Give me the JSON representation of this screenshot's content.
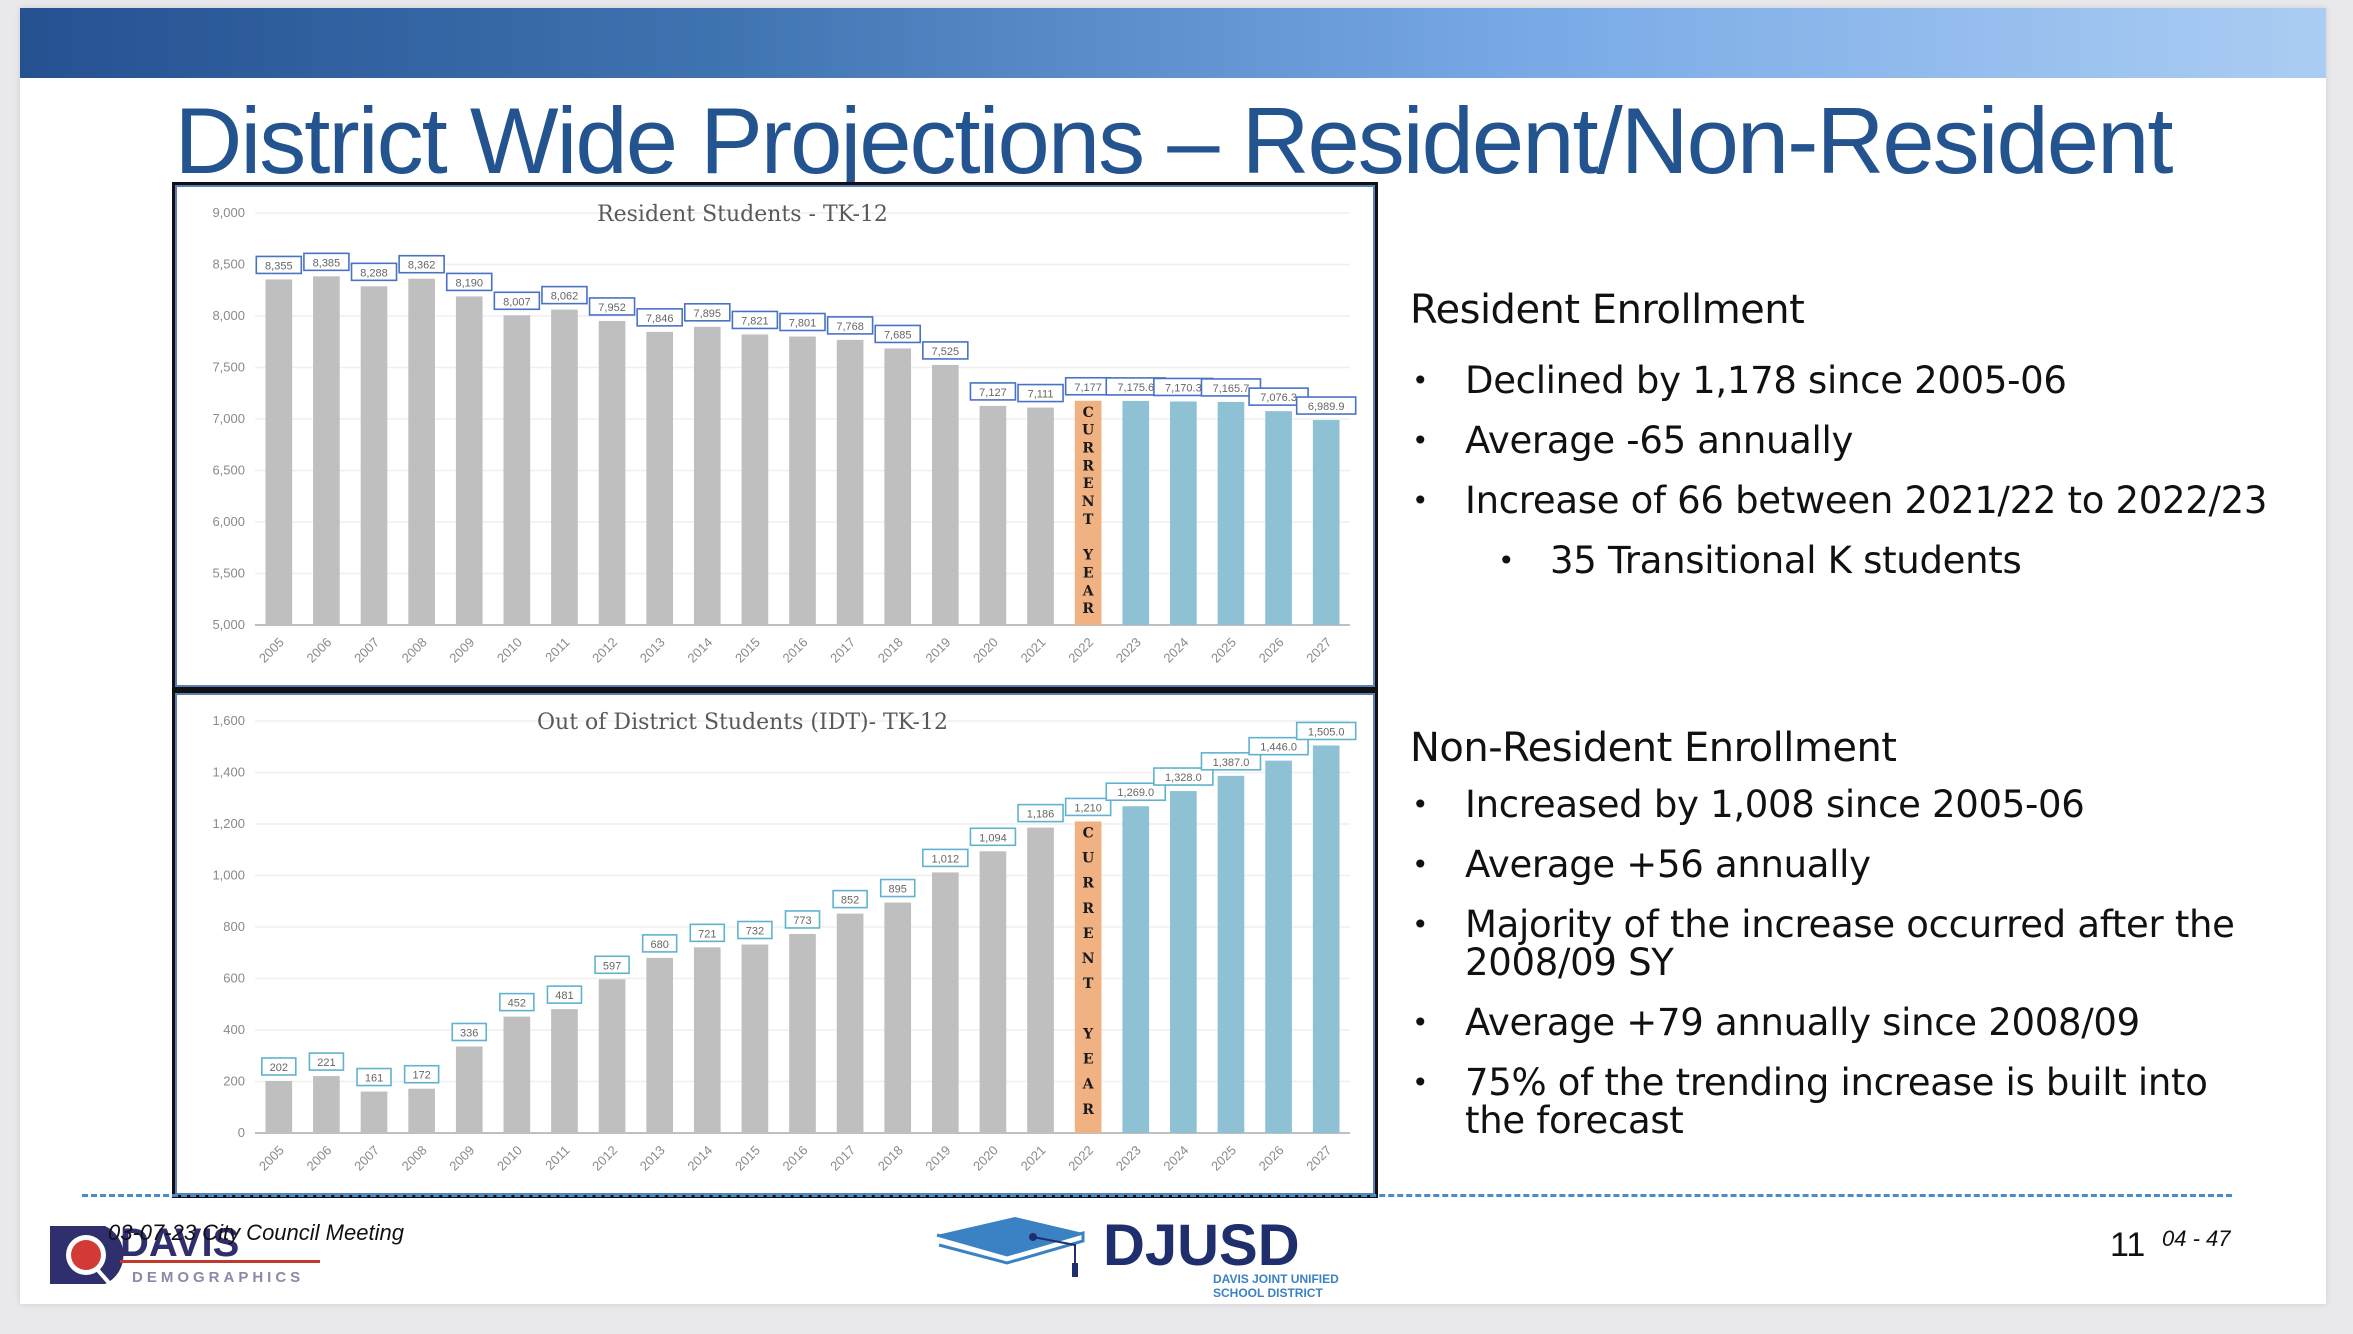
{
  "slide": {
    "title": "District Wide Projections – Resident/Non-Resident",
    "colors": {
      "title": "#23548f",
      "historical_bar": "#bfbfbf",
      "current_year_bar": "#f0b183",
      "projection_bar": "#8fc1d4",
      "label_box_resident": "#4a72c4",
      "label_box_nonresident": "#5fb3cf"
    }
  },
  "resident_panel": {
    "heading": "Resident Enrollment",
    "bullets": [
      "Declined by 1,178 since 2005-06",
      "Average -65 annually",
      "Increase of 66 between 2021/22 to 2022/23"
    ],
    "sub_bullets": [
      "35 Transitional K students"
    ]
  },
  "nonresident_panel": {
    "heading": "Non-Resident Enrollment",
    "bullets": [
      "Increased by 1,008 since 2005-06",
      "Average +56 annually",
      "Majority of the increase occurred after the 2008/09 SY",
      "Average +79 annually since 2008/09",
      "75% of the trending increase is built into the forecast"
    ]
  },
  "footer": {
    "meeting": "03-07-23 City Council Meeting",
    "left_logo_name": "DAVIS",
    "left_logo_sub": "DEMOGRAPHICS",
    "center_logo_name": "DJUSD",
    "center_logo_sub1": "DAVIS JOINT UNIFIED",
    "center_logo_sub2": "SCHOOL DISTRICT",
    "page_number": "11",
    "page_ref": "04 - 47"
  },
  "chart_data": [
    {
      "type": "bar",
      "title": "Resident Students - TK-12",
      "categories": [
        "2005",
        "2006",
        "2007",
        "2008",
        "2009",
        "2010",
        "2011",
        "2012",
        "2013",
        "2014",
        "2015",
        "2016",
        "2017",
        "2018",
        "2019",
        "2020",
        "2021",
        "2022",
        "2023",
        "2024",
        "2025",
        "2026",
        "2027"
      ],
      "values": [
        8355,
        8385,
        8288,
        8362,
        8190,
        8007,
        8062,
        7952,
        7846,
        7895,
        7821,
        7801,
        7768,
        7685,
        7525,
        7127,
        7111,
        7177,
        7175.6,
        7170.3,
        7165.7,
        7076.3,
        6989.9
      ],
      "labels": [
        "8,355",
        "8,385",
        "8,288",
        "8,362",
        "8,190",
        "8,007",
        "8,062",
        "7,952",
        "7,846",
        "7,895",
        "7,821",
        "7,801",
        "7,768",
        "7,685",
        "7,525",
        "7,127",
        "7,111",
        "7,177",
        "7,175.6",
        "7,170.3",
        "7,165.7",
        "7,076.3",
        "6,989.9"
      ],
      "bar_kind": [
        "hist",
        "hist",
        "hist",
        "hist",
        "hist",
        "hist",
        "hist",
        "hist",
        "hist",
        "hist",
        "hist",
        "hist",
        "hist",
        "hist",
        "hist",
        "hist",
        "hist",
        "current",
        "proj",
        "proj",
        "proj",
        "proj",
        "proj"
      ],
      "current_year_text": "CURRENT YEAR",
      "ylim": [
        5000,
        9000
      ],
      "yticks": [
        5000,
        5500,
        6000,
        6500,
        7000,
        7500,
        8000,
        8500,
        9000
      ],
      "ytick_labels": [
        "5,000",
        "5,500",
        "6,000",
        "6,500",
        "7,000",
        "7,500",
        "8,000",
        "8,500",
        "9,000"
      ],
      "xlabel": "",
      "ylabel": "",
      "grid": true,
      "legend": "none"
    },
    {
      "type": "bar",
      "title": "Out of District Students (IDT)- TK-12",
      "categories": [
        "2005",
        "2006",
        "2007",
        "2008",
        "2009",
        "2010",
        "2011",
        "2012",
        "2013",
        "2014",
        "2015",
        "2016",
        "2017",
        "2018",
        "2019",
        "2020",
        "2021",
        "2022",
        "2023",
        "2024",
        "2025",
        "2026",
        "2027"
      ],
      "values": [
        202,
        221,
        161,
        172,
        336,
        452,
        481,
        597,
        680,
        721,
        732,
        773,
        852,
        895,
        1012,
        1094,
        1186,
        1210,
        1269.0,
        1328.0,
        1387.0,
        1446.0,
        1505.0
      ],
      "labels": [
        "202",
        "221",
        "161",
        "172",
        "336",
        "452",
        "481",
        "597",
        "680",
        "721",
        "732",
        "773",
        "852",
        "895",
        "1,012",
        "1,094",
        "1,186",
        "1,210",
        "1,269.0",
        "1,328.0",
        "1,387.0",
        "1,446.0",
        "1,505.0"
      ],
      "bar_kind": [
        "hist",
        "hist",
        "hist",
        "hist",
        "hist",
        "hist",
        "hist",
        "hist",
        "hist",
        "hist",
        "hist",
        "hist",
        "hist",
        "hist",
        "hist",
        "hist",
        "hist",
        "current",
        "proj",
        "proj",
        "proj",
        "proj",
        "proj"
      ],
      "current_year_text": "CURRENT YEAR",
      "ylim": [
        0,
        1600
      ],
      "yticks": [
        0,
        200,
        400,
        600,
        800,
        1000,
        1200,
        1400,
        1600
      ],
      "ytick_labels": [
        "0",
        "200",
        "400",
        "600",
        "800",
        "1,000",
        "1,200",
        "1,400",
        "1,600"
      ],
      "xlabel": "",
      "ylabel": "",
      "grid": true,
      "legend": "none"
    }
  ]
}
